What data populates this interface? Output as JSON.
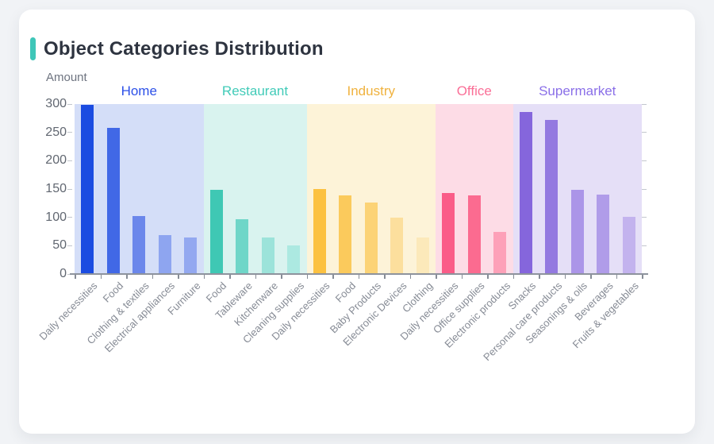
{
  "card": {
    "accent_color": "#3ec6b8"
  },
  "chart_data": {
    "type": "bar",
    "title": "Object Categories Distribution",
    "ylabel": "Amount",
    "xlabel": "",
    "ylim": [
      0,
      300
    ],
    "yticks": [
      0,
      50,
      100,
      150,
      200,
      250,
      300
    ],
    "grid": false,
    "legend_position": "none",
    "groups": [
      {
        "name": "Home",
        "label_color": "#2c50e8",
        "band_color": "#d4def8",
        "bars": [
          {
            "label": "Daily necessities",
            "value": 298,
            "color": "#1b4ce1"
          },
          {
            "label": "Food",
            "value": 258,
            "color": "#4168e6"
          },
          {
            "label": "Clothing & textiles",
            "value": 102,
            "color": "#6b87eb"
          },
          {
            "label": "Electrical appliances",
            "value": 69,
            "color": "#8ea5f0"
          },
          {
            "label": "Furniture",
            "value": 64,
            "color": "#93a8f0"
          }
        ]
      },
      {
        "name": "Restaurant",
        "label_color": "#41cbb8",
        "band_color": "#d9f3ef",
        "bars": [
          {
            "label": "Food",
            "value": 149,
            "color": "#3fc8b4"
          },
          {
            "label": "Tableware",
            "value": 97,
            "color": "#6fd6c8"
          },
          {
            "label": "Kitchenware",
            "value": 65,
            "color": "#9ce3da"
          },
          {
            "label": "Cleaning supplies",
            "value": 51,
            "color": "#ace9e1"
          }
        ]
      },
      {
        "name": "Industry",
        "label_color": "#f0b23e",
        "band_color": "#fdf3d8",
        "bars": [
          {
            "label": "Daily necessities",
            "value": 150,
            "color": "#fcc140"
          },
          {
            "label": "Food",
            "value": 139,
            "color": "#fbca5c"
          },
          {
            "label": "Baby Products",
            "value": 126,
            "color": "#fcd376"
          },
          {
            "label": "Electronic Devices",
            "value": 100,
            "color": "#fcdf9d"
          },
          {
            "label": "Clothing",
            "value": 64,
            "color": "#fce9ba"
          }
        ]
      },
      {
        "name": "Office",
        "label_color": "#fa6f97",
        "band_color": "#fddce6",
        "bars": [
          {
            "label": "Daily necessities",
            "value": 143,
            "color": "#fa5c88"
          },
          {
            "label": "Office supplies",
            "value": 139,
            "color": "#fb6b90"
          },
          {
            "label": "Electronic products",
            "value": 75,
            "color": "#fda0b8"
          }
        ]
      },
      {
        "name": "Supermarket",
        "label_color": "#8a6fe8",
        "band_color": "#e5dff7",
        "bars": [
          {
            "label": "Snacks",
            "value": 286,
            "color": "#8566dc"
          },
          {
            "label": "Personal care products",
            "value": 272,
            "color": "#9379e0"
          },
          {
            "label": "Seasonings & oils",
            "value": 148,
            "color": "#ab95e8"
          },
          {
            "label": "Beverages",
            "value": 140,
            "color": "#b09ce9"
          },
          {
            "label": "Fruits & vegetables",
            "value": 101,
            "color": "#c3b3ee"
          }
        ]
      }
    ]
  }
}
